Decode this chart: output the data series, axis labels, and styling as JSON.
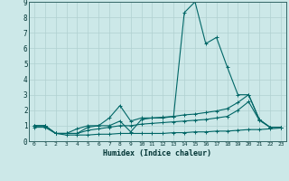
{
  "xlabel": "Humidex (Indice chaleur)",
  "xlim": [
    -0.5,
    23.5
  ],
  "ylim": [
    0,
    9
  ],
  "xticks": [
    0,
    1,
    2,
    3,
    4,
    5,
    6,
    7,
    8,
    9,
    10,
    11,
    12,
    13,
    14,
    15,
    16,
    17,
    18,
    19,
    20,
    21,
    22,
    23
  ],
  "yticks": [
    0,
    1,
    2,
    3,
    4,
    5,
    6,
    7,
    8,
    9
  ],
  "bg_color": "#cce8e8",
  "grid_color": "#b0d0d0",
  "line_color": "#006666",
  "series": [
    {
      "x": [
        0,
        1,
        2,
        3,
        4,
        5,
        6,
        7,
        8,
        9,
        10,
        11,
        12,
        13,
        14,
        15,
        16,
        17,
        18,
        19,
        20,
        21,
        22,
        23
      ],
      "y": [
        1.0,
        1.0,
        0.5,
        0.5,
        0.5,
        0.9,
        1.0,
        1.0,
        1.3,
        0.6,
        1.4,
        1.5,
        1.55,
        1.6,
        8.3,
        9.0,
        6.3,
        6.7,
        4.8,
        3.0,
        3.0,
        1.4,
        0.9,
        0.9
      ]
    },
    {
      "x": [
        0,
        1,
        2,
        3,
        4,
        5,
        6,
        7,
        8,
        9,
        10,
        11,
        12,
        13,
        14,
        15,
        16,
        17,
        18,
        19,
        20,
        21,
        22,
        23
      ],
      "y": [
        1.0,
        1.0,
        0.5,
        0.5,
        0.8,
        1.0,
        1.0,
        1.5,
        2.3,
        1.3,
        1.5,
        1.5,
        1.5,
        1.6,
        1.7,
        1.75,
        1.85,
        1.95,
        2.1,
        2.5,
        3.0,
        1.4,
        0.9,
        0.9
      ]
    },
    {
      "x": [
        0,
        1,
        2,
        3,
        4,
        5,
        6,
        7,
        8,
        9,
        10,
        11,
        12,
        13,
        14,
        15,
        16,
        17,
        18,
        19,
        20,
        21,
        22,
        23
      ],
      "y": [
        1.0,
        1.0,
        0.5,
        0.5,
        0.5,
        0.7,
        0.8,
        0.9,
        1.0,
        1.0,
        1.1,
        1.15,
        1.2,
        1.25,
        1.3,
        1.35,
        1.4,
        1.5,
        1.6,
        2.0,
        2.55,
        1.35,
        0.9,
        0.9
      ]
    },
    {
      "x": [
        0,
        1,
        2,
        3,
        4,
        5,
        6,
        7,
        8,
        9,
        10,
        11,
        12,
        13,
        14,
        15,
        16,
        17,
        18,
        19,
        20,
        21,
        22,
        23
      ],
      "y": [
        0.9,
        0.9,
        0.5,
        0.4,
        0.4,
        0.4,
        0.45,
        0.45,
        0.5,
        0.5,
        0.5,
        0.5,
        0.5,
        0.55,
        0.55,
        0.6,
        0.6,
        0.65,
        0.65,
        0.7,
        0.75,
        0.75,
        0.8,
        0.85
      ]
    }
  ]
}
